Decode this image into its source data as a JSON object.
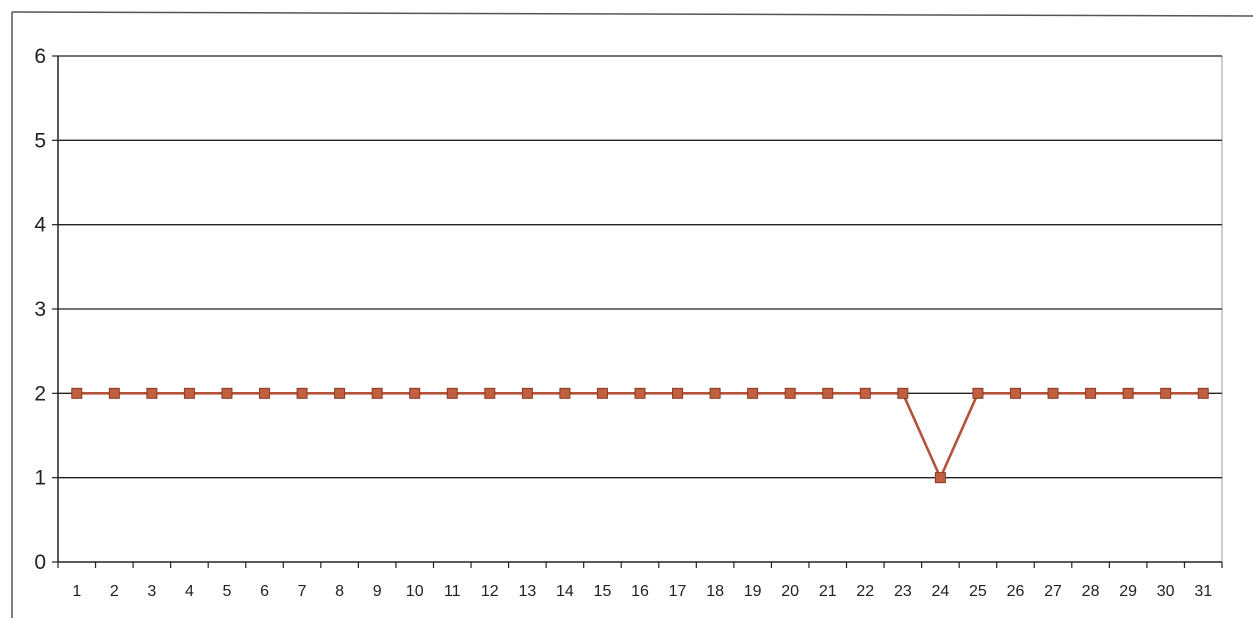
{
  "chart_data": {
    "type": "line",
    "title": "",
    "xlabel": "",
    "ylabel": "",
    "categories": [
      "1",
      "2",
      "3",
      "4",
      "5",
      "6",
      "7",
      "8",
      "9",
      "10",
      "11",
      "12",
      "13",
      "14",
      "15",
      "16",
      "17",
      "18",
      "19",
      "20",
      "21",
      "22",
      "23",
      "24",
      "25",
      "26",
      "27",
      "28",
      "29",
      "30",
      "31"
    ],
    "series": [
      {
        "values": [
          2,
          2,
          2,
          2,
          2,
          2,
          2,
          2,
          2,
          2,
          2,
          2,
          2,
          2,
          2,
          2,
          2,
          2,
          2,
          2,
          2,
          2,
          2,
          1,
          2,
          2,
          2,
          2,
          2,
          2,
          2
        ],
        "color": "#b5523a",
        "marker_color": "#c0603f"
      }
    ],
    "ylim": [
      0,
      6
    ],
    "yticks": [
      0,
      1,
      2,
      3,
      4,
      5,
      6
    ],
    "grid": true,
    "legend": "none"
  }
}
